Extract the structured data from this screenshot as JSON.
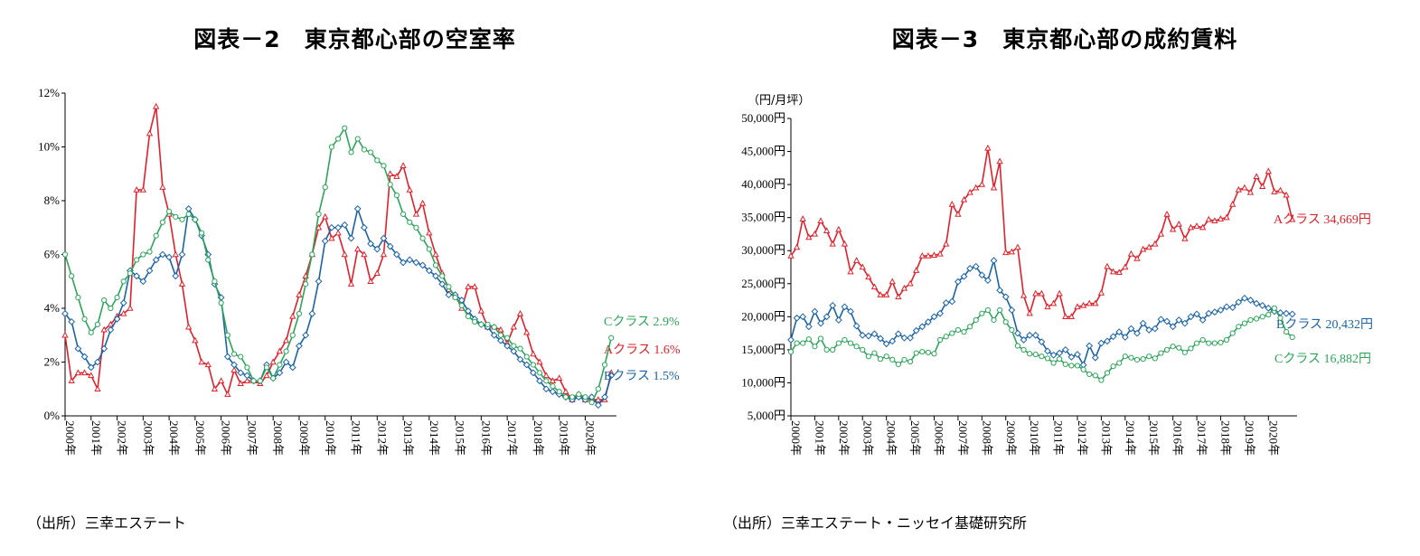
{
  "chart_data": [
    {
      "type": "line",
      "title": "図表－2　東京都心部の空室率",
      "source": "（出所）三幸エステート",
      "ylim": [
        0,
        12
      ],
      "ytick_values": [
        0,
        2,
        4,
        6,
        8,
        10,
        12
      ],
      "ytick_labels": [
        "0%",
        "2%",
        "4%",
        "6%",
        "8%",
        "10%",
        "12%"
      ],
      "xlim": [
        2000.0,
        2021.2
      ],
      "xtick_values": [
        2000,
        2001,
        2002,
        2003,
        2004,
        2005,
        2006,
        2007,
        2008,
        2009,
        2010,
        2011,
        2012,
        2013,
        2014,
        2015,
        2016,
        2017,
        2018,
        2019,
        2020
      ],
      "xtick_labels": [
        "2000年",
        "2001年",
        "2002年",
        "2003年",
        "2004年",
        "2005年",
        "2006年",
        "2007年",
        "2008年",
        "2009年",
        "2010年",
        "2011年",
        "2012年",
        "2013年",
        "2014年",
        "2015年",
        "2016年",
        "2017年",
        "2018年",
        "2019年",
        "2020年"
      ],
      "x": [
        2000.0,
        2000.25,
        2000.5,
        2000.75,
        2001.0,
        2001.25,
        2001.5,
        2001.75,
        2002.0,
        2002.25,
        2002.5,
        2002.75,
        2003.0,
        2003.25,
        2003.5,
        2003.75,
        2004.0,
        2004.25,
        2004.5,
        2004.75,
        2005.0,
        2005.25,
        2005.5,
        2005.75,
        2006.0,
        2006.25,
        2006.5,
        2006.75,
        2007.0,
        2007.25,
        2007.5,
        2007.75,
        2008.0,
        2008.25,
        2008.5,
        2008.75,
        2009.0,
        2009.25,
        2009.5,
        2009.75,
        2010.0,
        2010.25,
        2010.5,
        2010.75,
        2011.0,
        2011.25,
        2011.5,
        2011.75,
        2012.0,
        2012.25,
        2012.5,
        2012.75,
        2013.0,
        2013.25,
        2013.5,
        2013.75,
        2014.0,
        2014.25,
        2014.5,
        2014.75,
        2015.0,
        2015.25,
        2015.5,
        2015.75,
        2016.0,
        2016.25,
        2016.5,
        2016.75,
        2017.0,
        2017.25,
        2017.5,
        2017.75,
        2018.0,
        2018.25,
        2018.5,
        2018.75,
        2019.0,
        2019.25,
        2019.5,
        2019.75,
        2020.0,
        2020.25,
        2020.5,
        2020.75,
        2021.0
      ],
      "series": [
        {
          "name": "Aクラス",
          "color": "#e0202a",
          "end_label": "Aクラス 1.6%",
          "values": [
            3.0,
            1.3,
            1.6,
            1.6,
            1.5,
            1.0,
            3.2,
            3.4,
            3.7,
            3.8,
            4.0,
            8.4,
            8.4,
            10.5,
            11.5,
            8.5,
            7.5,
            6.0,
            4.9,
            3.3,
            2.8,
            2.0,
            1.9,
            1.0,
            1.3,
            0.8,
            1.7,
            1.2,
            1.3,
            1.3,
            1.2,
            1.5,
            2.0,
            2.4,
            2.8,
            3.7,
            4.5,
            5.2,
            6.0,
            7.0,
            7.4,
            6.6,
            6.8,
            6.0,
            4.9,
            6.2,
            6.0,
            5.0,
            5.3,
            6.0,
            9.0,
            8.9,
            9.3,
            8.4,
            7.5,
            7.9,
            6.8,
            6.0,
            5.3,
            4.7,
            4.5,
            4.0,
            4.8,
            4.8,
            3.9,
            3.3,
            3.3,
            3.2,
            2.7,
            3.3,
            3.8,
            3.1,
            2.3,
            2.0,
            1.5,
            1.3,
            1.4,
            0.9,
            0.6,
            0.8,
            0.6,
            0.6,
            0.6,
            0.6,
            1.6
          ]
        },
        {
          "name": "Bクラス",
          "color": "#1a63a6",
          "end_label": "Bクラス 1.5%",
          "values": [
            3.8,
            3.5,
            2.5,
            2.2,
            1.8,
            2.0,
            2.5,
            3.2,
            3.6,
            4.2,
            5.4,
            5.2,
            5.0,
            5.4,
            5.8,
            6.0,
            5.9,
            5.2,
            6.0,
            7.7,
            7.3,
            6.7,
            6.0,
            4.9,
            4.4,
            2.2,
            1.9,
            1.6,
            1.5,
            1.3,
            1.3,
            1.9,
            1.4,
            1.6,
            2.0,
            1.8,
            2.6,
            3.0,
            3.8,
            5.0,
            6.5,
            7.0,
            7.0,
            7.1,
            6.6,
            7.7,
            7.0,
            6.4,
            6.2,
            6.6,
            6.3,
            6.0,
            5.7,
            5.8,
            5.7,
            5.6,
            5.4,
            5.2,
            4.9,
            4.5,
            4.5,
            4.3,
            3.9,
            3.6,
            3.4,
            3.3,
            3.0,
            2.8,
            2.6,
            2.4,
            2.1,
            1.9,
            1.6,
            1.3,
            1.0,
            0.9,
            0.8,
            0.7,
            0.6,
            0.7,
            0.6,
            0.7,
            0.4,
            0.7,
            1.5
          ]
        },
        {
          "name": "Cクラス",
          "color": "#2ca55a",
          "end_label": "Cクラス 2.9%",
          "values": [
            6.0,
            5.2,
            4.4,
            3.6,
            3.1,
            3.4,
            4.3,
            4.0,
            4.4,
            5.0,
            5.3,
            5.8,
            6.0,
            6.1,
            6.7,
            7.2,
            7.6,
            7.4,
            7.3,
            7.5,
            7.3,
            6.8,
            5.8,
            5.0,
            4.2,
            3.0,
            2.3,
            2.2,
            1.8,
            1.3,
            1.3,
            1.8,
            1.4,
            1.9,
            2.4,
            3.0,
            3.8,
            4.9,
            6.0,
            7.5,
            8.5,
            10.0,
            10.3,
            10.7,
            9.8,
            10.3,
            9.9,
            9.8,
            9.5,
            9.3,
            8.6,
            8.2,
            7.5,
            7.2,
            7.0,
            6.6,
            6.2,
            5.6,
            5.2,
            4.8,
            4.4,
            4.1,
            3.7,
            3.5,
            3.4,
            3.4,
            3.3,
            3.0,
            2.9,
            2.6,
            2.5,
            2.2,
            1.9,
            1.6,
            1.3,
            1.1,
            0.9,
            0.7,
            0.7,
            0.8,
            0.7,
            0.5,
            1.0,
            1.9,
            2.9
          ]
        }
      ]
    },
    {
      "type": "line",
      "title": "図表－3　東京都心部の成約賃料",
      "source": "（出所）三幸エステート・ニッセイ基礎研究所",
      "y_unit": "（円/月坪）",
      "ylim": [
        5000,
        50000
      ],
      "ytick_values": [
        5000,
        10000,
        15000,
        20000,
        25000,
        30000,
        35000,
        40000,
        45000,
        50000
      ],
      "ytick_labels": [
        "5,000円",
        "10,000円",
        "15,000円",
        "20,000円",
        "25,000円",
        "30,000円",
        "35,000円",
        "40,000円",
        "45,000円",
        "50,000円"
      ],
      "xlim": [
        2000.0,
        2021.2
      ],
      "xtick_values": [
        2000,
        2001,
        2002,
        2003,
        2004,
        2005,
        2006,
        2007,
        2008,
        2009,
        2010,
        2011,
        2012,
        2013,
        2014,
        2015,
        2016,
        2017,
        2018,
        2019,
        2020
      ],
      "xtick_labels": [
        "2000年",
        "2001年",
        "2002年",
        "2003年",
        "2004年",
        "2005年",
        "2006年",
        "2007年",
        "2008年",
        "2009年",
        "2010年",
        "2011年",
        "2012年",
        "2013年",
        "2014年",
        "2015年",
        "2016年",
        "2017年",
        "2018年",
        "2019年",
        "2020年"
      ],
      "x": [
        2000.0,
        2000.25,
        2000.5,
        2000.75,
        2001.0,
        2001.25,
        2001.5,
        2001.75,
        2002.0,
        2002.25,
        2002.5,
        2002.75,
        2003.0,
        2003.25,
        2003.5,
        2003.75,
        2004.0,
        2004.25,
        2004.5,
        2004.75,
        2005.0,
        2005.25,
        2005.5,
        2005.75,
        2006.0,
        2006.25,
        2006.5,
        2006.75,
        2007.0,
        2007.25,
        2007.5,
        2007.75,
        2008.0,
        2008.25,
        2008.5,
        2008.75,
        2009.0,
        2009.25,
        2009.5,
        2009.75,
        2010.0,
        2010.25,
        2010.5,
        2010.75,
        2011.0,
        2011.25,
        2011.5,
        2011.75,
        2012.0,
        2012.25,
        2012.5,
        2012.75,
        2013.0,
        2013.25,
        2013.5,
        2013.75,
        2014.0,
        2014.25,
        2014.5,
        2014.75,
        2015.0,
        2015.25,
        2015.5,
        2015.75,
        2016.0,
        2016.25,
        2016.5,
        2016.75,
        2017.0,
        2017.25,
        2017.5,
        2017.75,
        2018.0,
        2018.25,
        2018.5,
        2018.75,
        2019.0,
        2019.25,
        2019.5,
        2019.75,
        2020.0,
        2020.25,
        2020.5,
        2020.75,
        2021.0
      ],
      "series": [
        {
          "name": "Aクラス",
          "color": "#e0202a",
          "end_label": "Aクラス 34,669円",
          "values": [
            29200,
            30500,
            34800,
            32000,
            32500,
            34500,
            33000,
            31000,
            33200,
            31000,
            26800,
            28500,
            27500,
            26000,
            24500,
            23300,
            23300,
            25300,
            23000,
            24300,
            25000,
            27000,
            29200,
            29200,
            29300,
            29500,
            31000,
            37000,
            35500,
            37700,
            38800,
            39500,
            40000,
            45500,
            39500,
            43500,
            29700,
            29800,
            30500,
            23200,
            20500,
            23500,
            23500,
            21500,
            22000,
            23500,
            20000,
            20000,
            21500,
            21700,
            22000,
            22000,
            23600,
            27600,
            26800,
            26700,
            27500,
            29500,
            28800,
            30200,
            30500,
            31000,
            32500,
            35500,
            33200,
            34000,
            31800,
            33500,
            33700,
            33500,
            34700,
            34500,
            34800,
            35000,
            37000,
            39200,
            39500,
            38800,
            41200,
            39700,
            42000,
            38900,
            39100,
            38400,
            34700
          ]
        },
        {
          "name": "Bクラス",
          "color": "#1a63a6",
          "end_label": "Bクラス 20,432円",
          "values": [
            16500,
            19800,
            20000,
            18500,
            20800,
            19000,
            20000,
            21700,
            19500,
            21500,
            20800,
            18600,
            17200,
            17100,
            17400,
            16700,
            15900,
            16300,
            17400,
            16800,
            16800,
            17900,
            18500,
            19200,
            20000,
            20500,
            22100,
            22300,
            25300,
            26100,
            27300,
            27600,
            26300,
            25500,
            28500,
            24000,
            23000,
            21000,
            17500,
            16500,
            17200,
            17200,
            16200,
            14800,
            14200,
            14500,
            15000,
            13900,
            14300,
            12700,
            15600,
            13800,
            16000,
            16300,
            17000,
            17700,
            16900,
            18200,
            17500,
            19000,
            18000,
            18200,
            19600,
            19300,
            18500,
            19500,
            19000,
            20000,
            20400,
            19500,
            20500,
            20700,
            21000,
            21500,
            21400,
            22200,
            22800,
            22500,
            22000,
            21700,
            21300,
            20800,
            20600,
            20500,
            20400
          ]
        },
        {
          "name": "Cクラス",
          "color": "#2ca55a",
          "end_label": "Cクラス 16,882円",
          "values": [
            14700,
            16000,
            16000,
            16600,
            15500,
            16700,
            15000,
            15000,
            16000,
            16500,
            16000,
            15500,
            15000,
            14000,
            14500,
            13600,
            14000,
            13500,
            12800,
            13500,
            13200,
            14500,
            14700,
            14600,
            14400,
            16500,
            17000,
            17500,
            18000,
            17700,
            18500,
            19500,
            20500,
            21000,
            19500,
            21000,
            19200,
            18000,
            15600,
            15000,
            14400,
            14300,
            14000,
            13700,
            13000,
            13600,
            12800,
            12600,
            12600,
            12000,
            11300,
            11100,
            10400,
            11500,
            12500,
            13000,
            14000,
            13800,
            13500,
            13600,
            14000,
            13700,
            14500,
            15000,
            15500,
            15300,
            14600,
            15200,
            16000,
            16500,
            16000,
            16000,
            16100,
            16500,
            17500,
            18500,
            19000,
            19500,
            19700,
            20000,
            20300,
            21300,
            19800,
            17700,
            16900
          ]
        }
      ]
    }
  ]
}
